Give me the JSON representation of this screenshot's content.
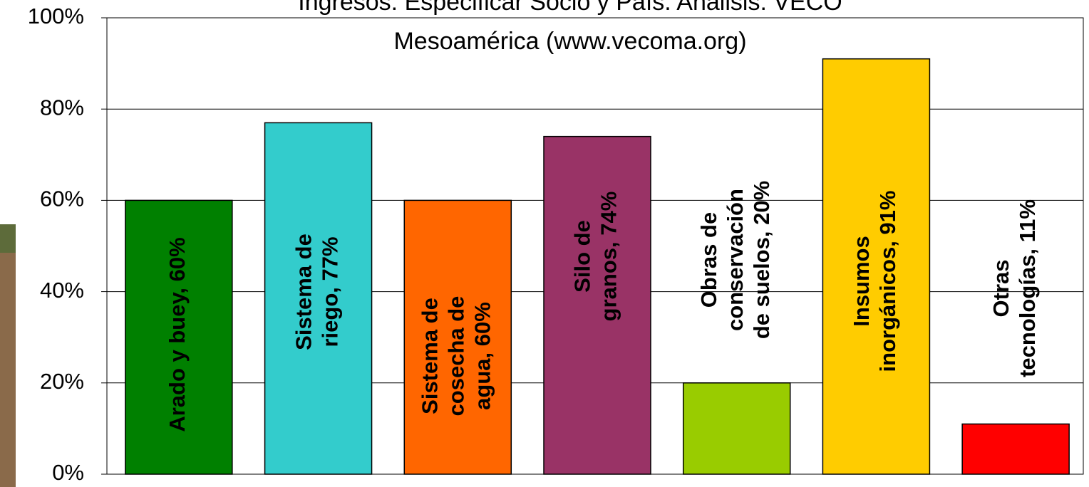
{
  "chart_data": {
    "type": "bar",
    "title": [
      "Ingresos: Especificar Socio y País. Análisis: VECO",
      "Mesoamérica (www.vecoma.org)"
    ],
    "values": [
      60,
      77,
      60,
      74,
      20,
      91,
      11
    ],
    "value_labels": [
      [
        "Arado y buey, 60%"
      ],
      [
        "Sistema de",
        "riego, 77%"
      ],
      [
        "Sistema de",
        "cosecha de",
        "agua, 60%"
      ],
      [
        "Silo de",
        "granos, 74%"
      ],
      [
        "Obras de",
        "conservación",
        "de suelos, 20%"
      ],
      [
        "Insumos",
        "inorgánicos, 91%"
      ],
      [
        "Otras",
        "tecnologías, 11%"
      ]
    ],
    "colors": [
      "#008000",
      "#33cccc",
      "#ff6600",
      "#993366",
      "#99cc00",
      "#ffcc00",
      "#ff0000"
    ],
    "ylim": [
      0,
      100
    ],
    "yticks": [
      {
        "value": 0,
        "label": "0%"
      },
      {
        "value": 20,
        "label": "20%"
      },
      {
        "value": 40,
        "label": "40%"
      },
      {
        "value": 60,
        "label": "60%"
      },
      {
        "value": 80,
        "label": "80%"
      },
      {
        "value": 100,
        "label": "100%"
      }
    ],
    "grid": true
  }
}
